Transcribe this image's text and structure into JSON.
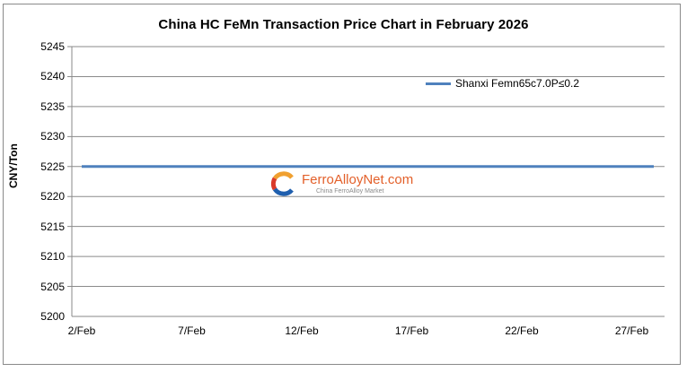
{
  "chart_data": {
    "type": "line",
    "title": "China HC FeMn Transaction Price Chart in February 2026",
    "xlabel": "",
    "ylabel": "CNY/Ton",
    "ylim": [
      5200,
      5245
    ],
    "yticks": [
      5245,
      5240,
      5235,
      5230,
      5225,
      5220,
      5215,
      5210,
      5205,
      5200
    ],
    "xtick_labels": [
      "2/Feb",
      "7/Feb",
      "12/Feb",
      "17/Feb",
      "22/Feb",
      "27/Feb"
    ],
    "grid": true,
    "legend_position": "upper right",
    "categories": [
      "2/Feb",
      "3/Feb",
      "4/Feb",
      "5/Feb",
      "6/Feb",
      "7/Feb",
      "8/Feb",
      "9/Feb",
      "10/Feb",
      "11/Feb",
      "12/Feb",
      "13/Feb",
      "14/Feb",
      "15/Feb",
      "16/Feb",
      "17/Feb",
      "18/Feb",
      "19/Feb",
      "20/Feb",
      "21/Feb",
      "22/Feb",
      "23/Feb",
      "24/Feb",
      "25/Feb",
      "26/Feb",
      "27/Feb",
      "28/Feb"
    ],
    "series": [
      {
        "name": "Shanxi Femn65c7.0P≤0.2",
        "color": "#4f81bd",
        "values": [
          5225,
          5225,
          5225,
          5225,
          5225,
          5225,
          5225,
          5225,
          5225,
          5225,
          5225,
          5225,
          5225,
          5225,
          5225,
          5225,
          5225,
          5225,
          5225,
          5225,
          5225,
          5225,
          5225,
          5225,
          5225,
          5225,
          5225
        ]
      }
    ]
  },
  "watermark": {
    "brand": "FerroAlloyNet.com",
    "tagline": "China FerroAlloy Market",
    "icon": "ferroalloynet-logo-icon"
  }
}
